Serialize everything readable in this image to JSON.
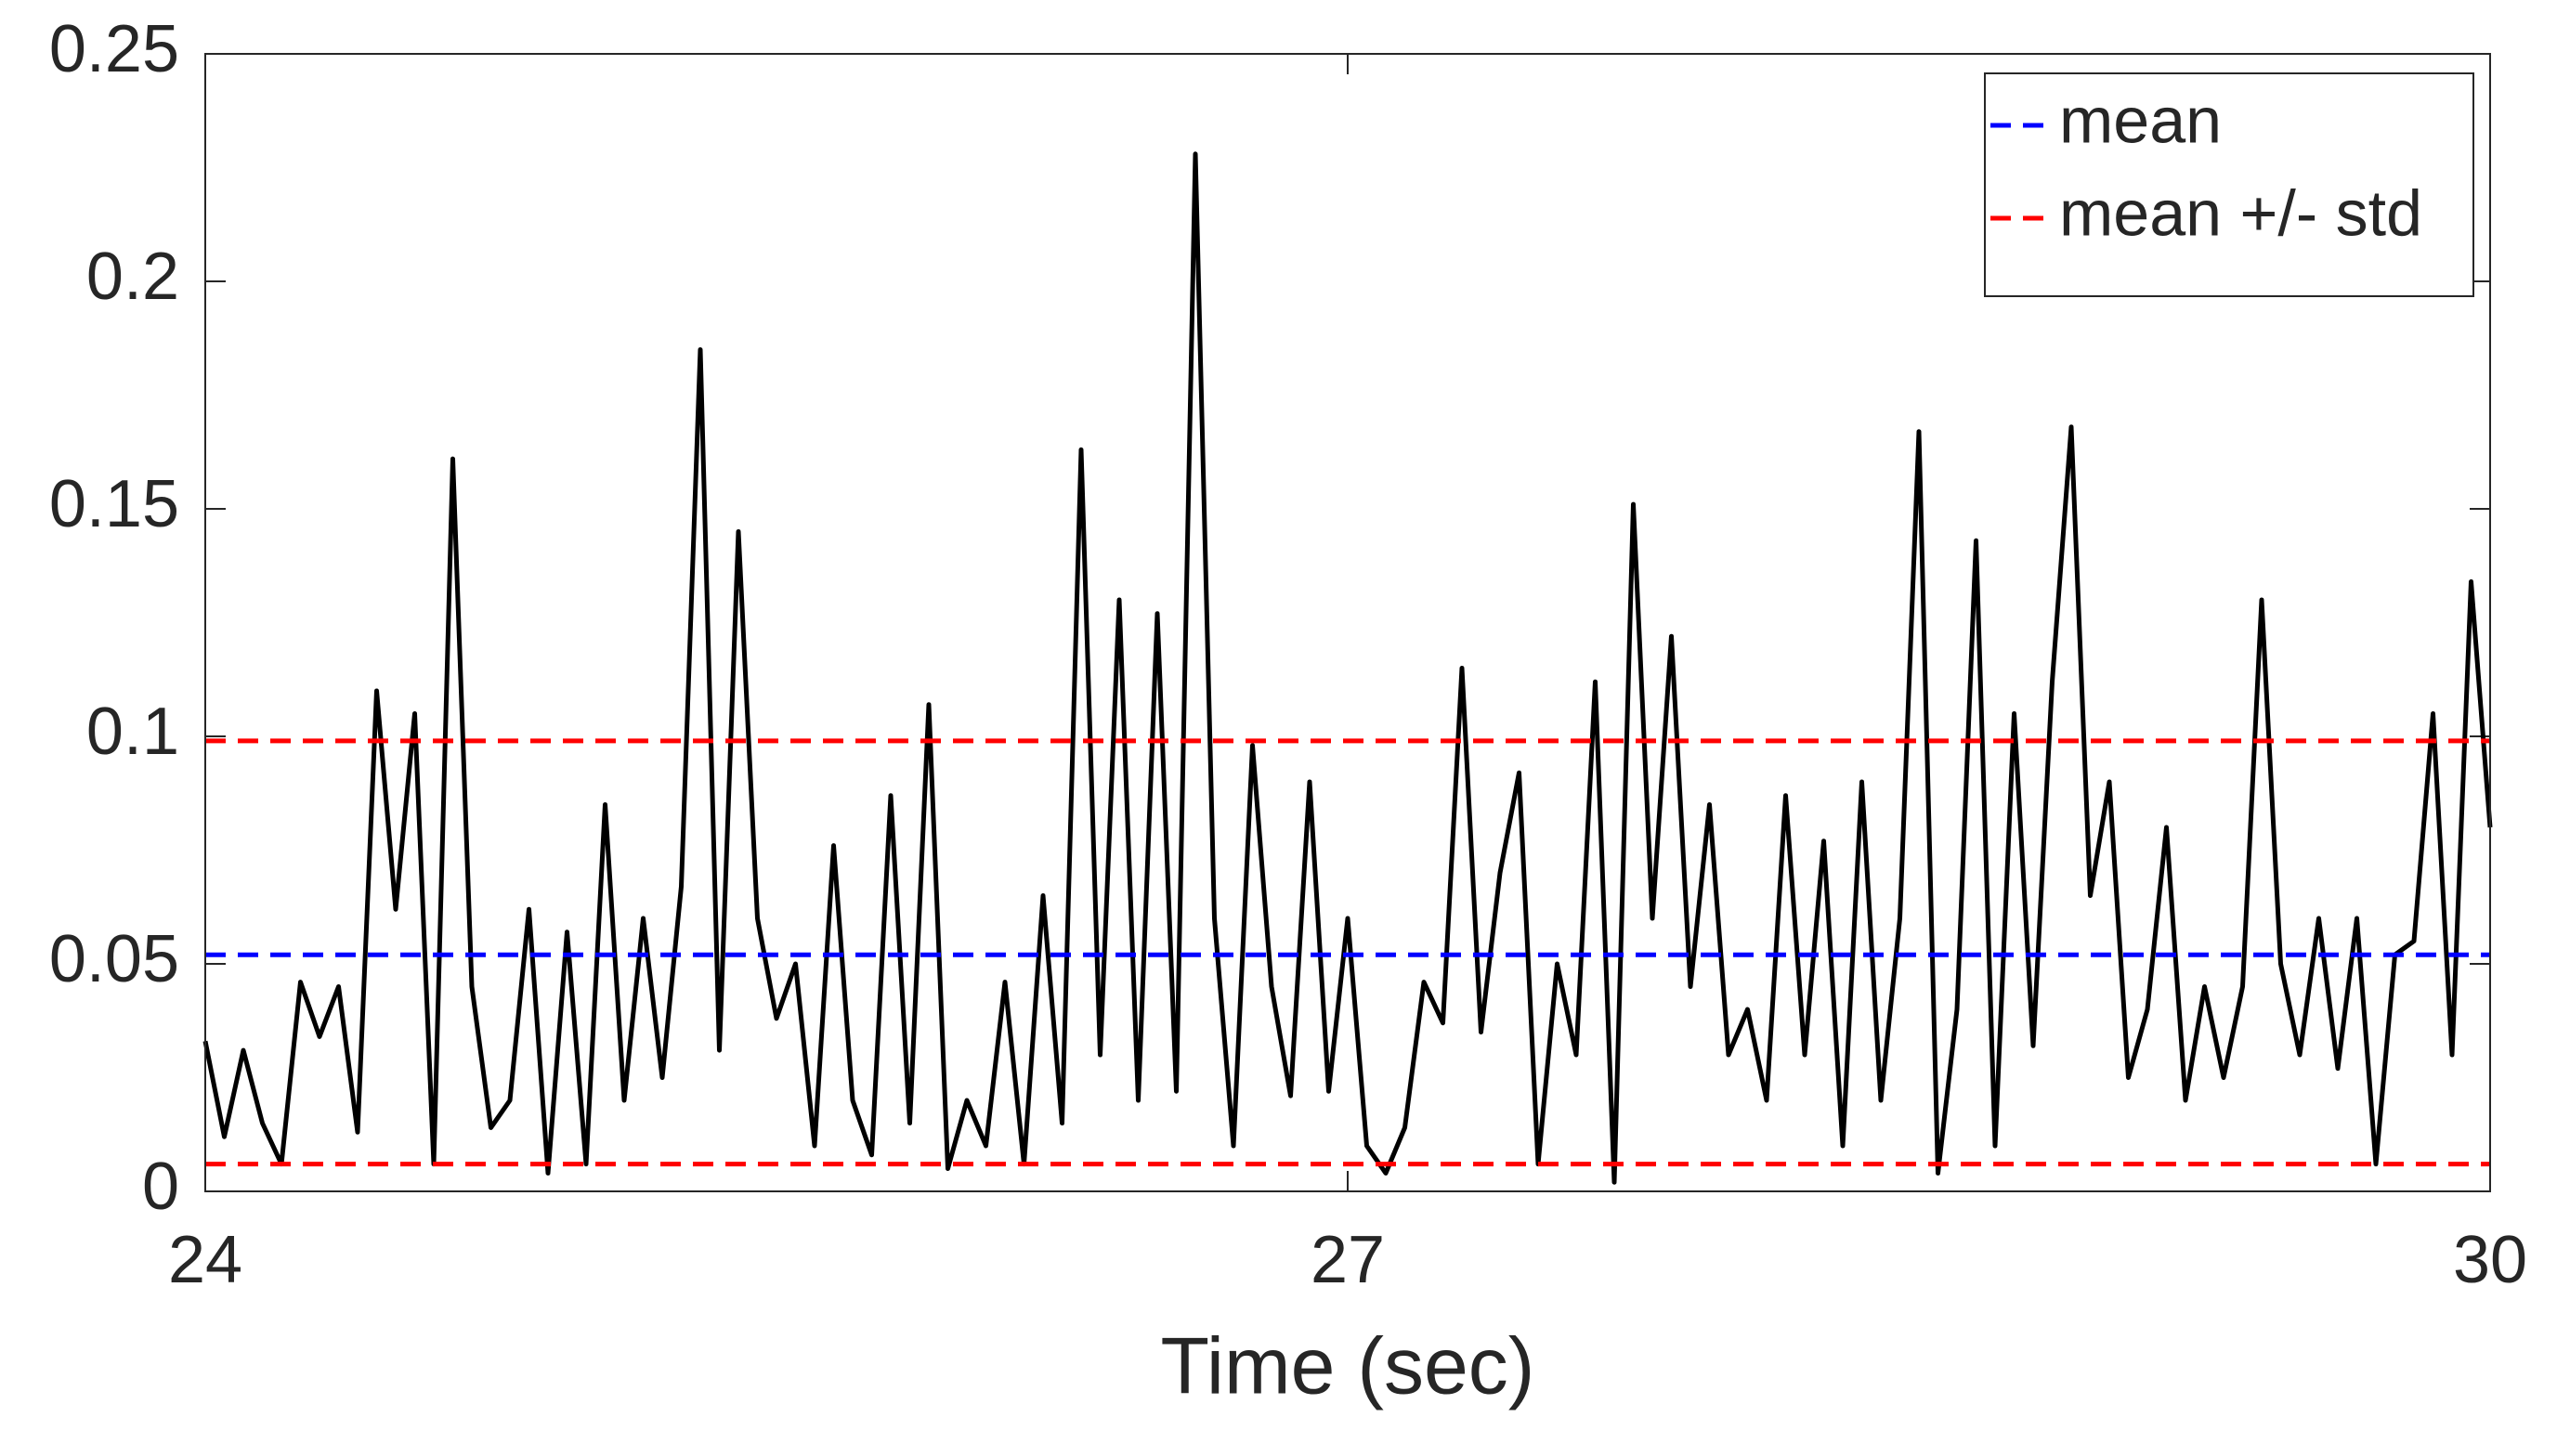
{
  "chart_data": {
    "type": "line",
    "xlabel": "Time (sec)",
    "x": [
      24,
      24.05,
      24.1,
      24.15,
      24.2,
      24.25,
      24.3,
      24.35,
      24.4,
      24.45,
      24.5,
      24.55,
      24.6,
      24.65,
      24.7,
      24.75,
      24.8,
      24.85,
      24.9,
      24.95,
      25,
      25.05,
      25.1,
      25.15,
      25.2,
      25.25,
      25.3,
      25.35,
      25.4,
      25.45,
      25.5,
      25.55,
      25.6,
      25.65,
      25.7,
      25.75,
      25.8,
      25.85,
      25.9,
      25.95,
      26,
      26.05,
      26.1,
      26.15,
      26.2,
      26.25,
      26.3,
      26.35,
      26.4,
      26.45,
      26.5,
      26.55,
      26.6,
      26.65,
      26.7,
      26.75,
      26.8,
      26.85,
      26.9,
      26.95,
      27,
      27.05,
      27.1,
      27.15,
      27.2,
      27.25,
      27.3,
      27.35,
      27.4,
      27.45,
      27.5,
      27.55,
      27.6,
      27.65,
      27.7,
      27.75,
      27.8,
      27.85,
      27.9,
      27.95,
      28,
      28.05,
      28.1,
      28.15,
      28.2,
      28.25,
      28.3,
      28.35,
      28.4,
      28.45,
      28.5,
      28.55,
      28.6,
      28.65,
      28.7,
      28.75,
      28.8,
      28.85,
      28.9,
      28.95,
      29,
      29.05,
      29.1,
      29.15,
      29.2,
      29.25,
      29.3,
      29.35,
      29.4,
      29.45,
      29.5,
      29.55,
      29.6,
      29.65,
      29.7,
      29.75,
      29.8,
      29.85,
      29.9,
      29.95,
      30
    ],
    "series": [
      {
        "color": "#000000",
        "values": [
          0.033,
          0.012,
          0.031,
          0.015,
          0.006,
          0.046,
          0.034,
          0.045,
          0.013,
          0.11,
          0.062,
          0.105,
          0.006,
          0.161,
          0.045,
          0.014,
          0.02,
          0.062,
          0.004,
          0.057,
          0.006,
          0.085,
          0.02,
          0.06,
          0.025,
          0.067,
          0.185,
          0.031,
          0.145,
          0.06,
          0.038,
          0.05,
          0.01,
          0.076,
          0.02,
          0.008,
          0.087,
          0.015,
          0.107,
          0.005,
          0.02,
          0.01,
          0.046,
          0.006,
          0.065,
          0.015,
          0.163,
          0.03,
          0.13,
          0.02,
          0.127,
          0.022,
          0.228,
          0.06,
          0.01,
          0.098,
          0.045,
          0.021,
          0.09,
          0.022,
          0.06,
          0.01,
          0.004,
          0.014,
          0.046,
          0.037,
          0.115,
          0.035,
          0.07,
          0.092,
          0.006,
          0.05,
          0.03,
          0.112,
          0.002,
          0.151,
          0.06,
          0.122,
          0.045,
          0.085,
          0.03,
          0.04,
          0.02,
          0.087,
          0.03,
          0.077,
          0.01,
          0.09,
          0.02,
          0.06,
          0.167,
          0.004,
          0.04,
          0.143,
          0.01,
          0.105,
          0.032,
          0.112,
          0.168,
          0.065,
          0.09,
          0.025,
          0.04,
          0.08,
          0.02,
          0.045,
          0.025,
          0.045,
          0.13,
          0.05,
          0.03,
          0.06,
          0.027,
          0.06,
          0.006,
          0.052,
          0.055,
          0.105,
          0.03,
          0.134,
          0.08
        ]
      }
    ],
    "hlines": [
      {
        "name": "mean",
        "color": "#0000ff",
        "values": [
          0.052
        ]
      },
      {
        "name": "mean +/- std",
        "color": "#ff0000",
        "values": [
          0.006,
          0.099
        ]
      }
    ],
    "xlim": [
      24,
      30
    ],
    "xticks": [
      24,
      27,
      30
    ],
    "ylim": [
      0,
      0.25
    ],
    "yticks": [
      0,
      0.05,
      0.1,
      0.15,
      0.2,
      0.25
    ],
    "grid": false,
    "legend": "upper right"
  }
}
